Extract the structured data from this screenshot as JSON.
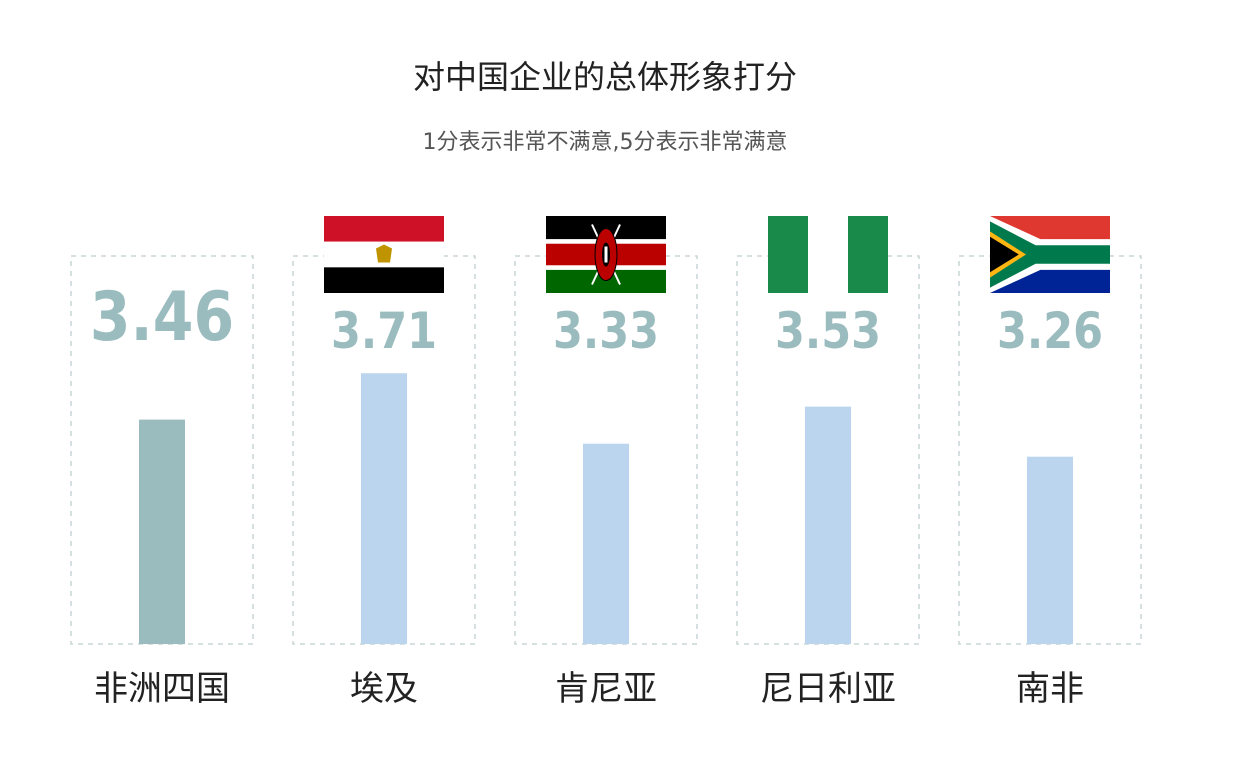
{
  "chart_data": {
    "type": "bar",
    "title": "对中国企业的总体形象打分",
    "subtitle": "1分表示非常不满意,5分表示非常满意",
    "categories": [
      "非洲四国",
      "埃及",
      "肯尼亚",
      "尼日利亚",
      "南非"
    ],
    "values": [
      3.46,
      3.71,
      3.33,
      3.53,
      3.26
    ],
    "flags": [
      "",
      "egypt-flag",
      "kenya-flag",
      "nigeria-flag",
      "south-africa-flag"
    ],
    "ylim": [
      2.25,
      3.9
    ],
    "xlabel": "",
    "ylabel": "",
    "grid": false,
    "colors": {
      "highlight_bar": "#9bbcbf",
      "bar": "#bcd5ef",
      "value_text": "#9bbcbf",
      "frame": "#c8d6d6",
      "category_text": "#222222"
    }
  }
}
